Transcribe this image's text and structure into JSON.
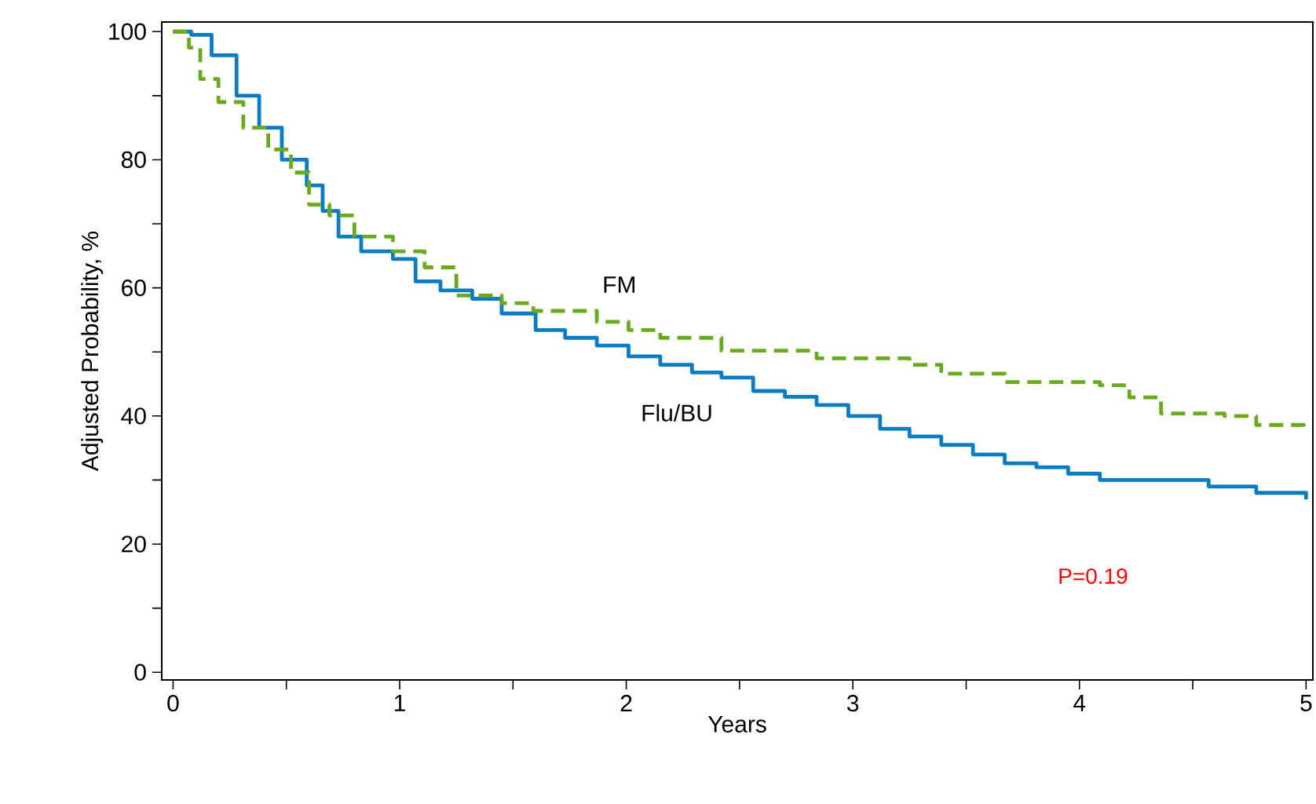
{
  "chart_data": {
    "type": "step",
    "xlabel": "Years",
    "ylabel": "Adjusted Probability, %",
    "xlim": [
      -0.05,
      5.03
    ],
    "ylim": [
      -1.2,
      101.5
    ],
    "xticks": [
      0,
      1,
      2,
      3,
      4,
      5
    ],
    "yticks": [
      0,
      20,
      40,
      60,
      80,
      100
    ],
    "x": [
      0,
      0.08,
      0.17,
      0.28,
      0.38,
      0.48,
      0.59,
      0.66,
      0.73,
      0.83,
      0.97,
      1.07,
      1.18,
      1.32,
      1.45,
      1.6,
      1.73,
      1.87,
      2.01,
      2.15,
      2.29,
      2.42,
      2.56,
      2.7,
      2.84,
      2.98,
      3.12,
      3.25,
      3.39,
      3.53,
      3.67,
      3.81,
      3.95,
      4.09,
      4.43,
      4.57,
      4.78,
      5.0
    ],
    "series": [
      {
        "name": "Flu/BU",
        "color": "#0a7cc4",
        "line_style": "solid",
        "values": [
          100,
          99.5,
          96.3,
          90,
          85,
          80,
          76,
          72,
          68,
          65.7,
          64.5,
          61,
          59.6,
          58.3,
          56,
          53.4,
          52.2,
          51,
          49.3,
          48,
          46.8,
          46,
          43.9,
          43,
          41.7,
          40,
          38,
          36.8,
          35.5,
          34,
          32.6,
          32,
          31,
          30,
          30,
          29,
          28,
          27
        ]
      },
      {
        "name": "FM",
        "color": "#6aaa1e",
        "line_style": "dashed",
        "x": [
          0,
          0.07,
          0.12,
          0.2,
          0.31,
          0.42,
          0.52,
          0.6,
          0.69,
          0.8,
          0.97,
          1.11,
          1.25,
          1.45,
          1.59,
          1.87,
          2.01,
          2.15,
          2.42,
          2.84,
          3.25,
          3.39,
          3.67,
          4.09,
          4.22,
          4.36,
          4.64,
          4.78,
          4.99
        ],
        "values": [
          100,
          97.5,
          92.6,
          89,
          85,
          81.6,
          78,
          73,
          71.3,
          68,
          65.7,
          63.2,
          58.8,
          57.6,
          56.4,
          54.7,
          53.4,
          52.2,
          50.2,
          49,
          48,
          46.6,
          45.3,
          44.8,
          42.9,
          40.4,
          40,
          38.6,
          37.5
        ]
      }
    ],
    "annotations": [
      "P=0.19"
    ],
    "grid": false,
    "legend": false
  }
}
